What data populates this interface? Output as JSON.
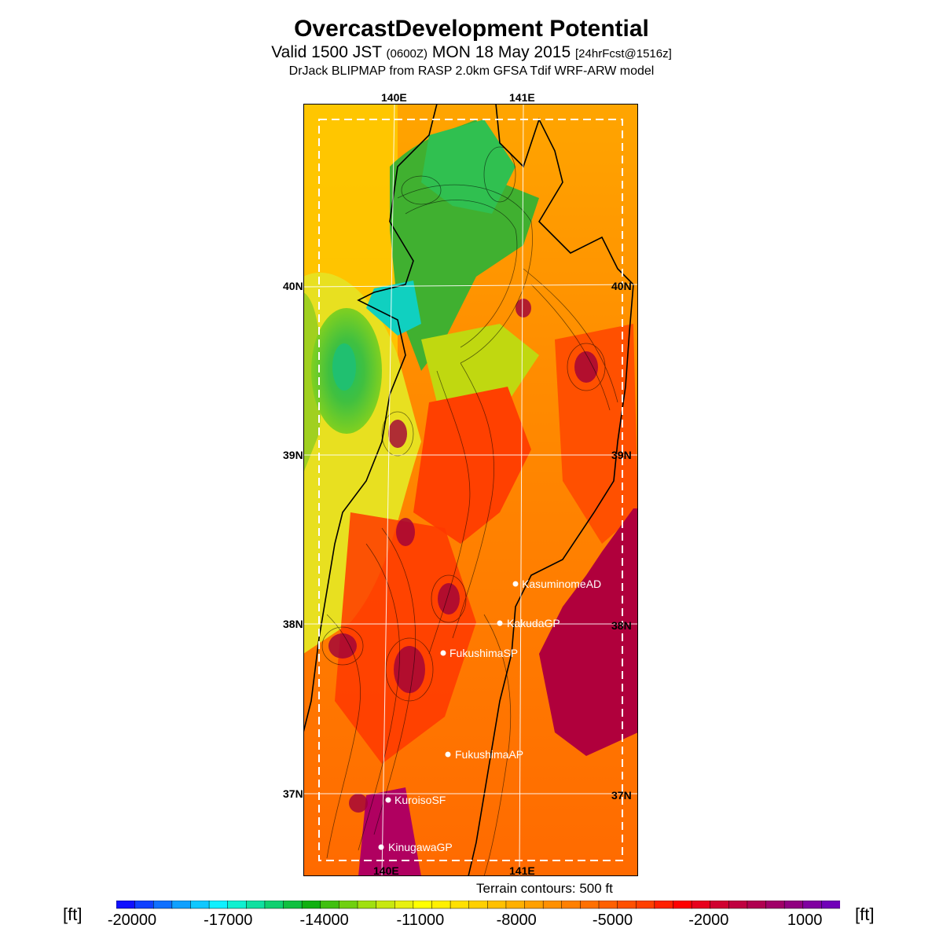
{
  "title": "OvercastDevelopment Potential",
  "subtitle": {
    "prefix": "Valid 1500 JST",
    "utc": "(0600Z)",
    "date": "MON 18 May 2015",
    "fcst": "[24hrFcst@1516z]"
  },
  "model_line": "DrJack BLIPMAP from RASP 2.0km GFSA Tdif WRF-ARW model",
  "axis_labels": {
    "top": [
      "140E",
      "141E"
    ],
    "bottom": [
      "140E",
      "141E"
    ],
    "left": [
      "40N",
      "39N",
      "38N",
      "37N"
    ],
    "right": [
      "40N",
      "39N",
      "38N",
      "37N"
    ]
  },
  "sites": [
    {
      "name": "KasuminomeAD"
    },
    {
      "name": "KakudaGP"
    },
    {
      "name": "FukushimaSP"
    },
    {
      "name": "FukushimaAP"
    },
    {
      "name": "KuroisoSF"
    },
    {
      "name": "KinugawaGP"
    }
  ],
  "contour_note": "Terrain contours: 500 ft",
  "colorbar": {
    "unit": "[ft]",
    "tick_labels": [
      "-20000",
      "-17000",
      "-14000",
      "-11000",
      "-8000",
      "-5000",
      "-2000",
      "1000"
    ],
    "colors": [
      "#1010ff",
      "#1040ff",
      "#1070ff",
      "#10a0ff",
      "#10c8ff",
      "#10f0ff",
      "#10f0d0",
      "#10e0a0",
      "#10d070",
      "#10c040",
      "#10b010",
      "#40c010",
      "#70d010",
      "#a0e010",
      "#c8e810",
      "#e8f010",
      "#ffff00",
      "#fff000",
      "#ffe000",
      "#ffd000",
      "#ffc000",
      "#ffb000",
      "#ffa000",
      "#ff9000",
      "#ff8000",
      "#ff7000",
      "#ff6000",
      "#ff5000",
      "#ff4000",
      "#ff2000",
      "#ff0000",
      "#e8001c",
      "#d00030",
      "#c00040",
      "#b00050",
      "#a00068",
      "#900080",
      "#8000a0",
      "#7000b8"
    ]
  }
}
